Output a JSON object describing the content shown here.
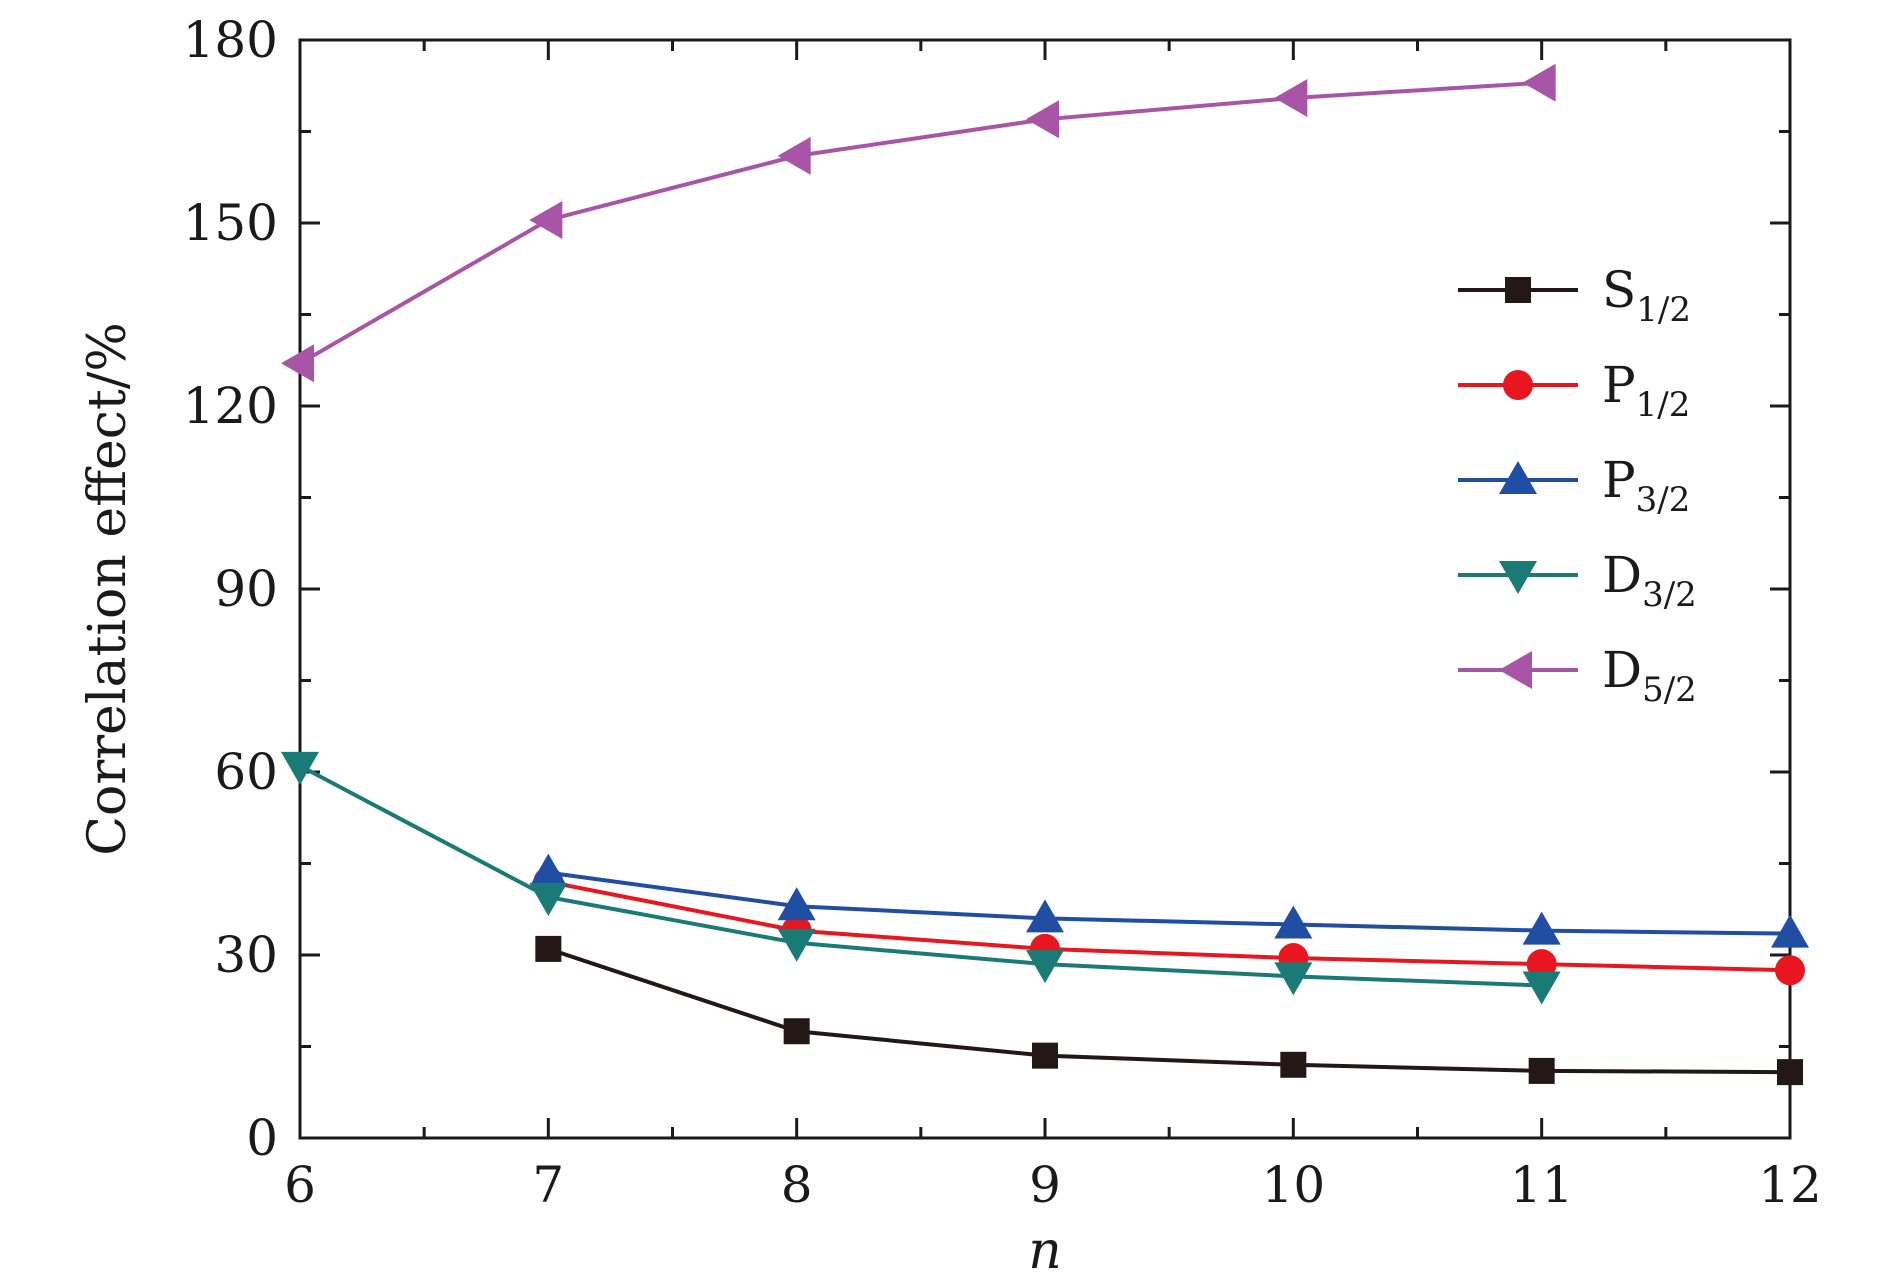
{
  "chart_data": {
    "type": "line",
    "title": "",
    "xlabel": "n",
    "ylabel": "Correlation effect/%",
    "xlim": [
      6,
      12
    ],
    "ylim": [
      0,
      180
    ],
    "xticks": [
      6,
      7,
      8,
      9,
      10,
      11,
      12
    ],
    "yticks": [
      0,
      30,
      60,
      90,
      120,
      150,
      180
    ],
    "xtick_labels": [
      "6",
      "7",
      "8",
      "9",
      "10",
      "11",
      "12"
    ],
    "ytick_labels": [
      "0",
      "30",
      "60",
      "90",
      "120",
      "150",
      "180"
    ],
    "grid": false,
    "legend_position": "right",
    "series": [
      {
        "name": "S",
        "sub": "1/2",
        "color": "#231815",
        "marker": "square",
        "x": [
          7,
          8,
          9,
          10,
          11,
          12
        ],
        "values": [
          31,
          17.5,
          13.5,
          12,
          11,
          10.8
        ]
      },
      {
        "name": "P",
        "sub": "1/2",
        "color": "#e8161f",
        "marker": "circle",
        "x": [
          7,
          8,
          9,
          10,
          11,
          12
        ],
        "values": [
          42,
          34,
          31,
          29.5,
          28.5,
          27.5
        ]
      },
      {
        "name": "P",
        "sub": "3/2",
        "color": "#1f4ea3",
        "marker": "triangle-up",
        "x": [
          7,
          8,
          9,
          10,
          11,
          12
        ],
        "values": [
          43.5,
          38,
          36,
          35,
          34,
          33.5
        ]
      },
      {
        "name": "D",
        "sub": "3/2",
        "color": "#1a7a75",
        "marker": "triangle-down",
        "x": [
          6,
          7,
          8,
          9,
          10,
          11
        ],
        "values": [
          61,
          39.5,
          32,
          28.5,
          26.5,
          25
        ]
      },
      {
        "name": "D",
        "sub": "5/2",
        "color": "#a855a8",
        "marker": "triangle-left",
        "x": [
          6,
          7,
          8,
          9,
          10,
          11
        ],
        "values": [
          127,
          150.5,
          161,
          167,
          170.5,
          173
        ]
      }
    ]
  }
}
